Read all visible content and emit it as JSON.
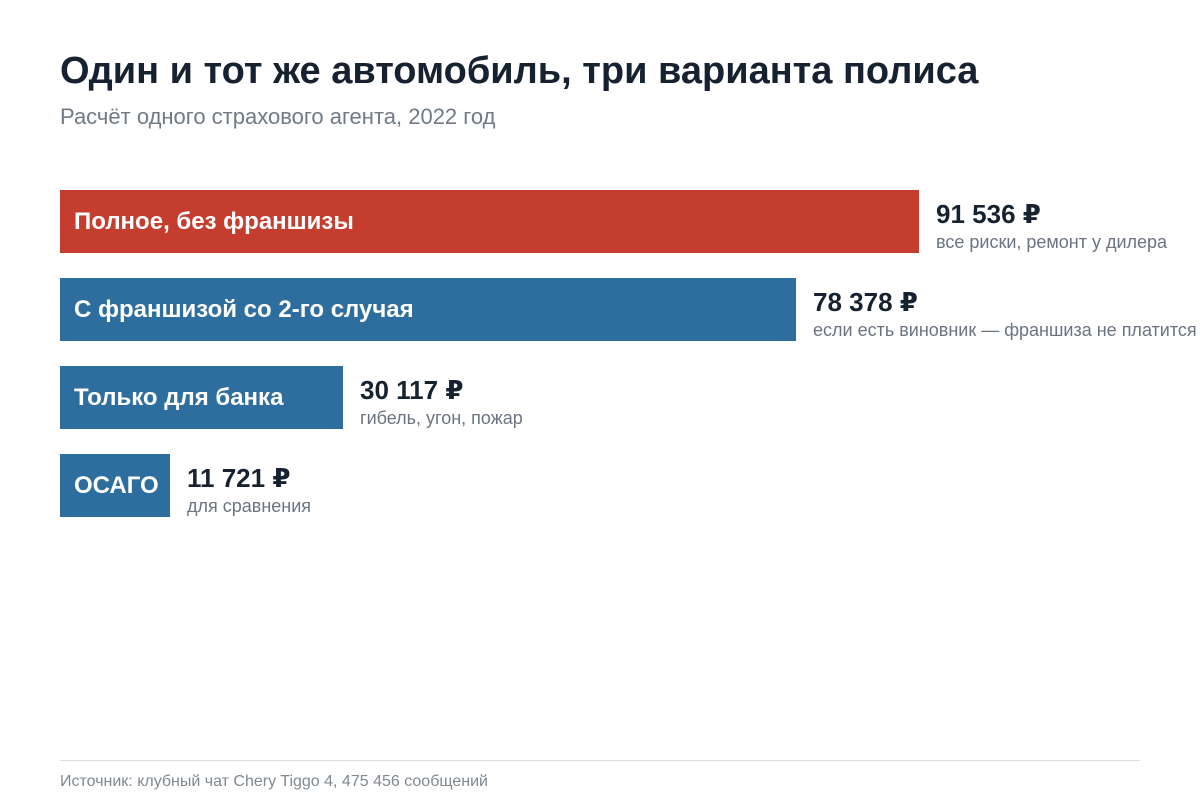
{
  "title": "Один и тот же автомобиль, три варианта полиса",
  "subtitle": "Расчёт одного страхового агента, 2022 год",
  "source": "Источник: клубный чат Chery Tiggo 4, 475 456 сообщений",
  "chart_data": {
    "type": "bar",
    "orientation": "horizontal",
    "title": "Один и тот же автомобиль, три варианта полиса",
    "subtitle": "Расчёт одного страхового агента, 2022 год",
    "unit": "₽",
    "categories": [
      "Полное, без франшизы",
      "С франшизой со 2-го случая",
      "Только для банка",
      "ОСАГО"
    ],
    "values": [
      91536,
      78378,
      30117,
      11721
    ],
    "value_labels": [
      "91 536 ₽",
      "78 378 ₽",
      "30 117 ₽",
      "11 721 ₽"
    ],
    "notes": [
      "все риски, ремонт у дилера",
      "если есть виновник — франшиза не платится",
      "гибель, угон, пожар",
      "для сравнения"
    ],
    "colors": [
      "#c43d2e",
      "#2e6e9e",
      "#2e6e9e",
      "#2e6e9e"
    ],
    "xlim": [
      0,
      98000
    ],
    "grid": false,
    "legend": "none"
  }
}
